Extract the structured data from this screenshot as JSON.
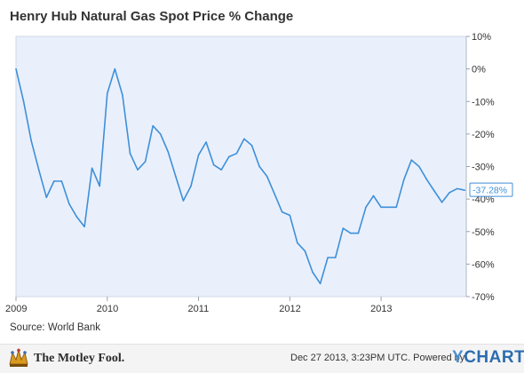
{
  "chart_data": {
    "type": "line",
    "title": "Henry Hub Natural Gas Spot Price % Change",
    "source_label": "Source: World Bank",
    "x_tick_labels": [
      "2009",
      "2010",
      "2011",
      "2012",
      "2013"
    ],
    "y_tick_labels": [
      "10%",
      "0%",
      "-10%",
      "-20%",
      "-30%",
      "-40%",
      "-50%",
      "-60%",
      "-70%"
    ],
    "ylim": [
      -70,
      10
    ],
    "grid": false,
    "axis_side": "right",
    "series": [
      {
        "color": "#3f8fd8",
        "end_label": "-37.28%",
        "x": [
          "2009-01",
          "2009-02",
          "2009-03",
          "2009-04",
          "2009-05",
          "2009-06",
          "2009-07",
          "2009-08",
          "2009-09",
          "2009-10",
          "2009-11",
          "2009-12",
          "2010-01",
          "2010-02",
          "2010-03",
          "2010-04",
          "2010-05",
          "2010-06",
          "2010-07",
          "2010-08",
          "2010-09",
          "2010-10",
          "2010-11",
          "2010-12",
          "2011-01",
          "2011-02",
          "2011-03",
          "2011-04",
          "2011-05",
          "2011-06",
          "2011-07",
          "2011-08",
          "2011-09",
          "2011-10",
          "2011-11",
          "2011-12",
          "2012-01",
          "2012-02",
          "2012-03",
          "2012-04",
          "2012-05",
          "2012-06",
          "2012-07",
          "2012-08",
          "2012-09",
          "2012-10",
          "2012-11",
          "2012-12",
          "2013-01",
          "2013-02",
          "2013-03",
          "2013-04",
          "2013-05",
          "2013-06",
          "2013-07",
          "2013-08",
          "2013-09",
          "2013-10",
          "2013-11",
          "2013-12"
        ],
        "values": [
          0,
          -10,
          -22,
          -31,
          -39.5,
          -34.5,
          -34.5,
          -41.5,
          -45.5,
          -48.5,
          -30.5,
          -36,
          -7.5,
          0,
          -8,
          -26,
          -31,
          -28.5,
          -17.5,
          -20,
          -25.5,
          -33,
          -40.5,
          -36,
          -26.5,
          -22.5,
          -29.5,
          -31,
          -27,
          -26,
          -21.5,
          -23.5,
          -30,
          -33,
          -38.5,
          -44,
          -45,
          -53.5,
          -56,
          -62.5,
          -66,
          -58,
          -58,
          -49,
          -50.5,
          -50.5,
          -42.5,
          -39,
          -42.5,
          -42.5,
          -42.5,
          -34,
          -28,
          -30,
          -34,
          -37.5,
          -41,
          -38,
          -36.8,
          -37.28
        ]
      }
    ]
  },
  "footer": {
    "logo_text": "The Motley Fool.",
    "timestamp_text": "Dec 27 2013, 3:23PM UTC.  Powered by",
    "brand_y": "Y",
    "brand_rest": "CHARTS"
  }
}
